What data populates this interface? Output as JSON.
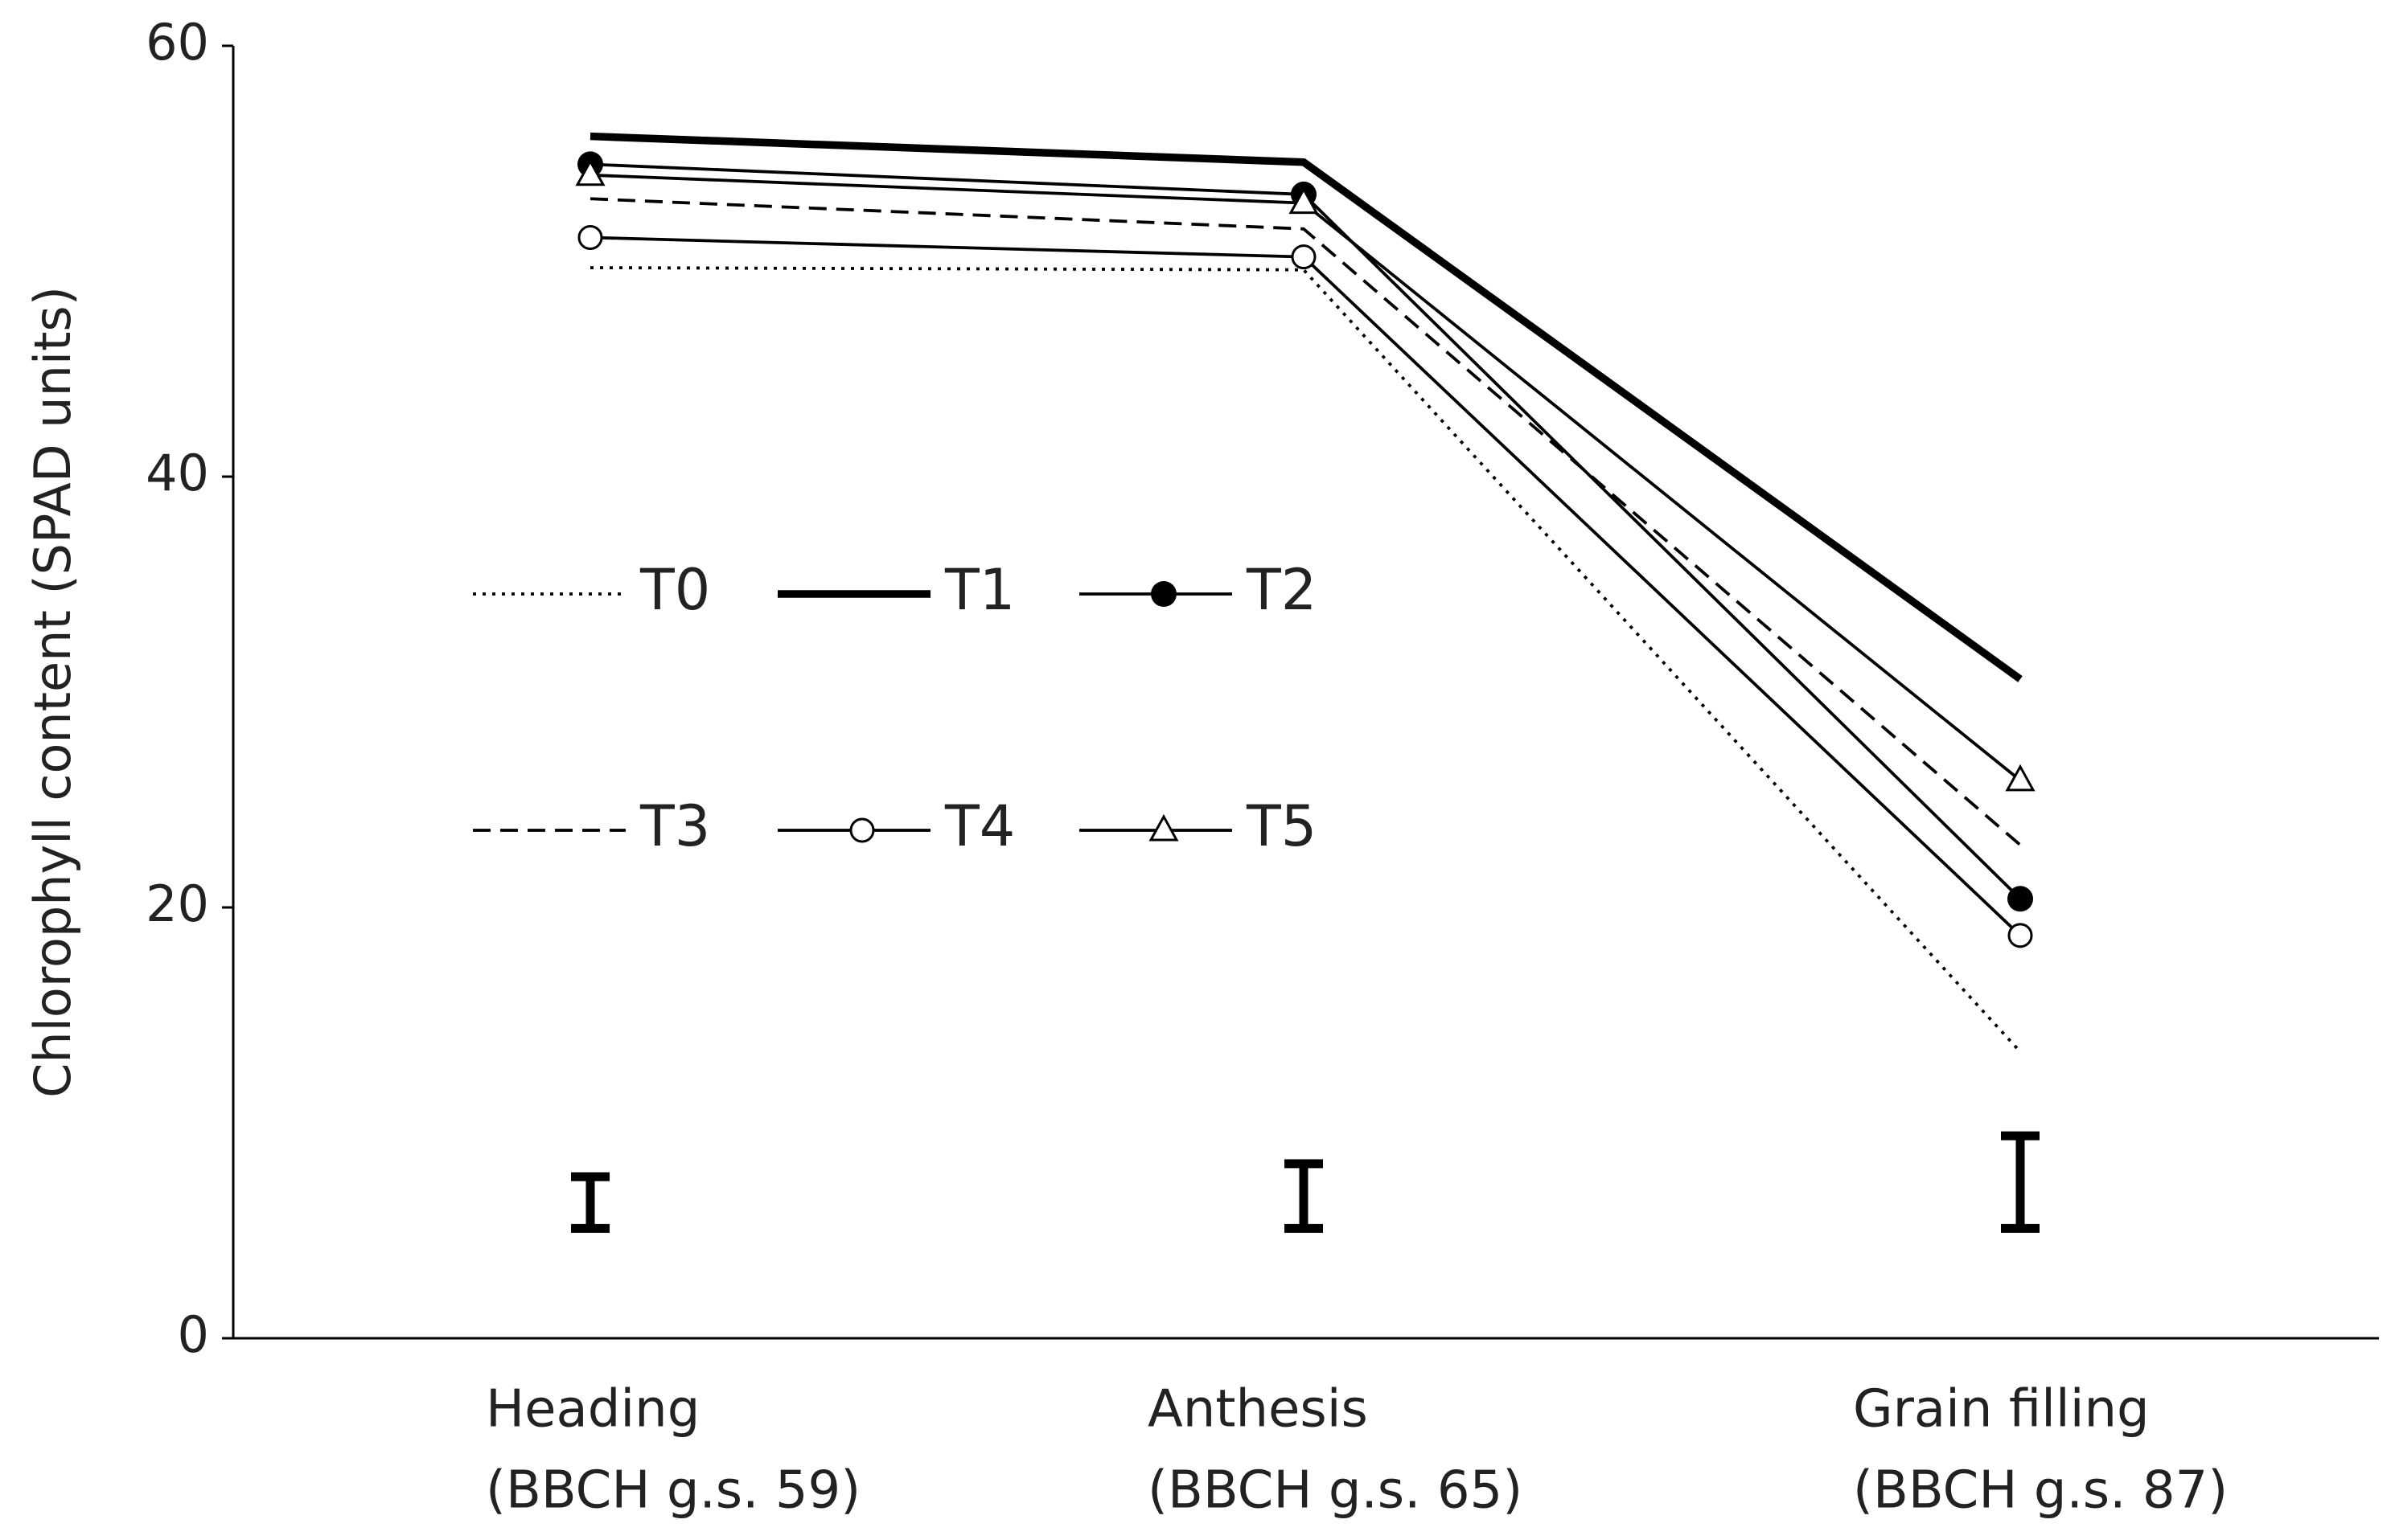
{
  "chart_data": {
    "type": "line",
    "y_label": "Chlorophyll content (SPAD units)",
    "categories": [
      "Heading",
      "Anthesis",
      "Grain filling"
    ],
    "category_sublabels": [
      "(BBCH g.s. 59)",
      "(BBCH g.s. 65)",
      "(BBCH g.s. 87)"
    ],
    "ylim": [
      0,
      60
    ],
    "yticks": [
      0,
      20,
      40,
      60
    ],
    "series": [
      {
        "name": "T0",
        "color": "#000000",
        "line_style": "dotted",
        "line_width": 2,
        "marker": "none",
        "values": [
          49.7,
          49.6,
          13.3
        ]
      },
      {
        "name": "T1",
        "color": "#000000",
        "line_style": "solid",
        "line_width": 5,
        "marker": "none",
        "values": [
          55.8,
          54.6,
          30.6
        ]
      },
      {
        "name": "T2",
        "color": "#000000",
        "line_style": "solid",
        "line_width": 2,
        "marker": "filled-circle",
        "values": [
          54.5,
          53.1,
          20.4
        ]
      },
      {
        "name": "T3",
        "color": "#000000",
        "line_style": "dashed",
        "line_width": 2,
        "marker": "none",
        "values": [
          52.9,
          51.5,
          22.9
        ]
      },
      {
        "name": "T4",
        "color": "#000000",
        "line_style": "solid",
        "line_width": 2,
        "marker": "open-circle",
        "values": [
          51.1,
          50.2,
          18.7
        ]
      },
      {
        "name": "T5",
        "color": "#000000",
        "line_style": "solid",
        "line_width": 2,
        "marker": "open-triangle",
        "values": [
          54.0,
          52.7,
          25.9
        ]
      }
    ],
    "error_bars": [
      {
        "low": 5.1,
        "high": 7.5
      },
      {
        "low": 5.1,
        "high": 8.1
      },
      {
        "low": 5.1,
        "high": 9.4
      }
    ]
  }
}
